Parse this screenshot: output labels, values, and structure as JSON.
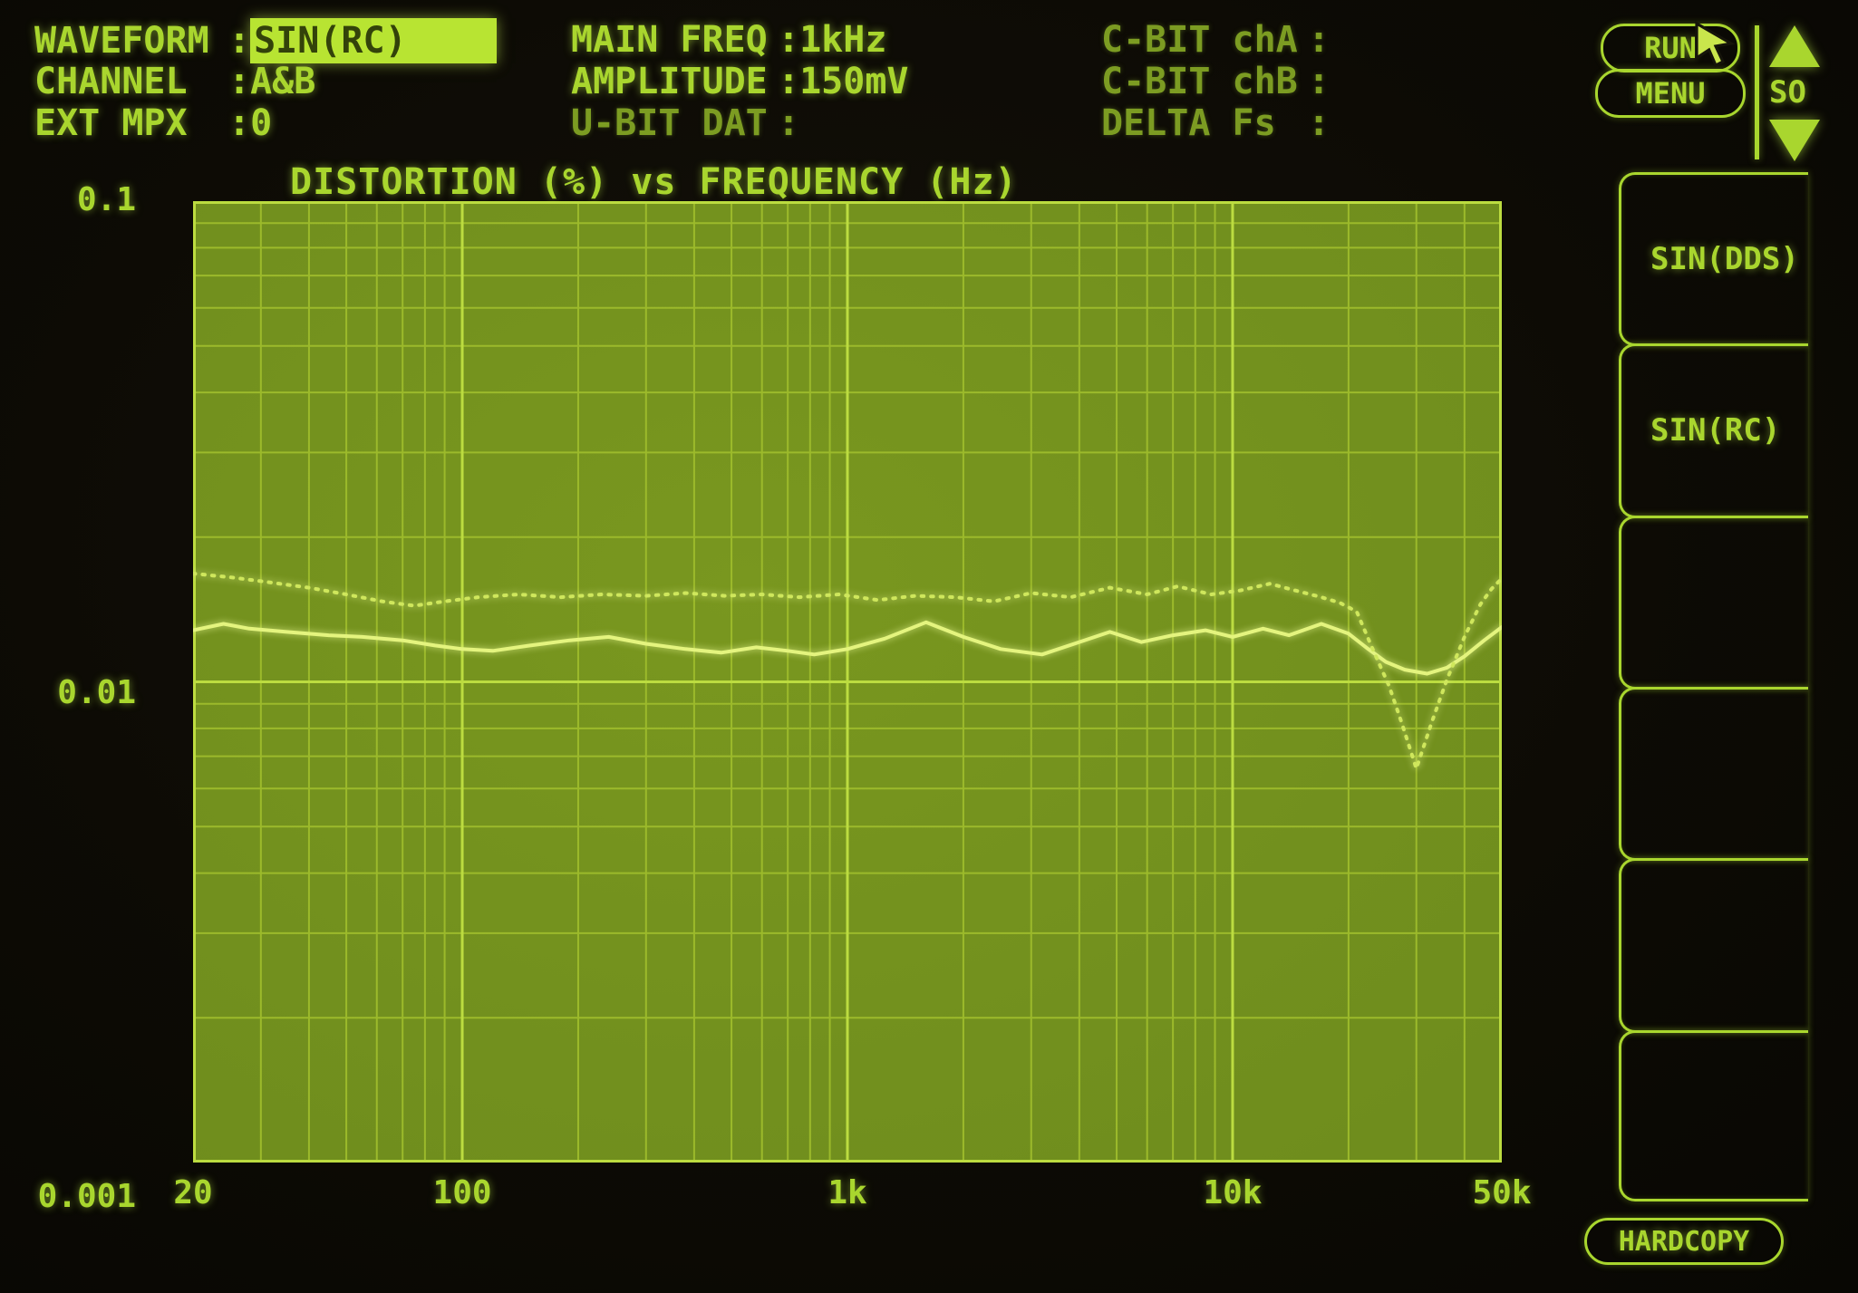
{
  "colors": {
    "phosphor_bright": "#a9d62e",
    "phosphor_dim": "#7c9c22",
    "highlight_bg": "#b8e432",
    "highlight_text": "#33420a",
    "plot_bg": "#6f8d1d",
    "grid_minor": "#9cba2b",
    "grid_major": "#bcdc40",
    "trace_solid": "#e4f47e",
    "trace_dotted": "#cfe75c",
    "screen_bg": "#0d0b05"
  },
  "header": {
    "left_rows": [
      {
        "label": "WAVEFORM",
        "value": "SIN(RC)",
        "highlighted": true,
        "dim": false
      },
      {
        "label": "CHANNEL",
        "value": "A&B",
        "highlighted": false,
        "dim": false
      },
      {
        "label": "EXT MPX",
        "value": "0",
        "highlighted": false,
        "dim": false
      }
    ],
    "mid_rows": [
      {
        "label": "MAIN FREQ",
        "value": "1kHz",
        "highlighted": false,
        "dim": false
      },
      {
        "label": "AMPLITUDE",
        "value": "150mV",
        "highlighted": false,
        "dim": false
      },
      {
        "label": "U-BIT DAT",
        "value": "",
        "highlighted": false,
        "dim": true
      }
    ],
    "right_rows": [
      {
        "label": "C-BIT chA",
        "value": "",
        "highlighted": false,
        "dim": true
      },
      {
        "label": "C-BIT chB",
        "value": "",
        "highlighted": false,
        "dim": true
      },
      {
        "label": "DELTA Fs ",
        "value": "",
        "highlighted": false,
        "dim": true
      }
    ]
  },
  "controls": {
    "run_label": "RUN",
    "menu_label": "MENU",
    "page_label": "SO",
    "hardcopy_label": "HARDCOPY"
  },
  "softkeys": [
    {
      "label": "SIN(DDS)"
    },
    {
      "label": "SIN(RC)"
    },
    {
      "label": ""
    },
    {
      "label": ""
    },
    {
      "label": ""
    },
    {
      "label": ""
    }
  ],
  "chart_data": {
    "type": "line",
    "title": "DISTORTION (%) vs FREQUENCY (Hz)",
    "xlabel": "FREQUENCY (Hz)",
    "ylabel": "DISTORTION (%)",
    "x_scale": "log",
    "y_scale": "log",
    "xlim": [
      20,
      50000
    ],
    "ylim": [
      0.001,
      0.1
    ],
    "grid": true,
    "x_ticks": [
      {
        "value": 20,
        "label": "20"
      },
      {
        "value": 100,
        "label": "100"
      },
      {
        "value": 1000,
        "label": "1k"
      },
      {
        "value": 10000,
        "label": "10k"
      },
      {
        "value": 50000,
        "label": "50k"
      }
    ],
    "y_ticks": [
      {
        "value": 0.1,
        "label": "0.1"
      },
      {
        "value": 0.01,
        "label": "0.01"
      },
      {
        "value": 0.001,
        "label": "0.001"
      }
    ],
    "series": [
      {
        "name": "distortion-trace-solid",
        "style": "solid",
        "points": [
          [
            20,
            0.0128
          ],
          [
            24,
            0.0132
          ],
          [
            28,
            0.0129
          ],
          [
            35,
            0.0127
          ],
          [
            45,
            0.0125
          ],
          [
            55,
            0.0124
          ],
          [
            70,
            0.0122
          ],
          [
            85,
            0.0119
          ],
          [
            100,
            0.0117
          ],
          [
            120,
            0.0116
          ],
          [
            150,
            0.0119
          ],
          [
            190,
            0.0122
          ],
          [
            240,
            0.0124
          ],
          [
            300,
            0.012
          ],
          [
            380,
            0.0117
          ],
          [
            470,
            0.0115
          ],
          [
            580,
            0.0118
          ],
          [
            700,
            0.0116
          ],
          [
            820,
            0.0114
          ],
          [
            1000,
            0.0117
          ],
          [
            1250,
            0.0123
          ],
          [
            1600,
            0.0133
          ],
          [
            2000,
            0.0124
          ],
          [
            2500,
            0.0117
          ],
          [
            3200,
            0.0114
          ],
          [
            4000,
            0.0121
          ],
          [
            4800,
            0.0127
          ],
          [
            5800,
            0.0121
          ],
          [
            7000,
            0.0125
          ],
          [
            8500,
            0.0128
          ],
          [
            10000,
            0.0124
          ],
          [
            12000,
            0.0129
          ],
          [
            14000,
            0.0125
          ],
          [
            17000,
            0.0132
          ],
          [
            20000,
            0.0126
          ],
          [
            22500,
            0.0117
          ],
          [
            25000,
            0.011
          ],
          [
            28000,
            0.0106
          ],
          [
            32000,
            0.0104
          ],
          [
            36000,
            0.0107
          ],
          [
            40000,
            0.0113
          ],
          [
            45000,
            0.0122
          ],
          [
            50000,
            0.013
          ]
        ]
      },
      {
        "name": "distortion-trace-dotted",
        "style": "dotted",
        "points": [
          [
            20,
            0.0168
          ],
          [
            25,
            0.0165
          ],
          [
            30,
            0.0162
          ],
          [
            40,
            0.0157
          ],
          [
            50,
            0.0152
          ],
          [
            62,
            0.0147
          ],
          [
            75,
            0.0144
          ],
          [
            90,
            0.0147
          ],
          [
            110,
            0.015
          ],
          [
            140,
            0.0152
          ],
          [
            180,
            0.015
          ],
          [
            230,
            0.0152
          ],
          [
            300,
            0.0151
          ],
          [
            380,
            0.0153
          ],
          [
            480,
            0.0151
          ],
          [
            600,
            0.0152
          ],
          [
            750,
            0.015
          ],
          [
            950,
            0.0152
          ],
          [
            1200,
            0.0148
          ],
          [
            1500,
            0.0151
          ],
          [
            1900,
            0.015
          ],
          [
            2400,
            0.0147
          ],
          [
            3000,
            0.0153
          ],
          [
            3800,
            0.015
          ],
          [
            4800,
            0.0157
          ],
          [
            6000,
            0.0152
          ],
          [
            7200,
            0.0158
          ],
          [
            8800,
            0.0152
          ],
          [
            10500,
            0.0155
          ],
          [
            12500,
            0.016
          ],
          [
            14500,
            0.0155
          ],
          [
            17000,
            0.015
          ],
          [
            19000,
            0.0146
          ],
          [
            21000,
            0.014
          ],
          [
            23000,
            0.0118
          ],
          [
            25500,
            0.0098
          ],
          [
            27500,
            0.0082
          ],
          [
            30000,
            0.0066
          ],
          [
            33000,
            0.0083
          ],
          [
            36000,
            0.0101
          ],
          [
            40000,
            0.0124
          ],
          [
            44000,
            0.0145
          ],
          [
            47000,
            0.0156
          ],
          [
            50000,
            0.0164
          ]
        ]
      }
    ]
  }
}
